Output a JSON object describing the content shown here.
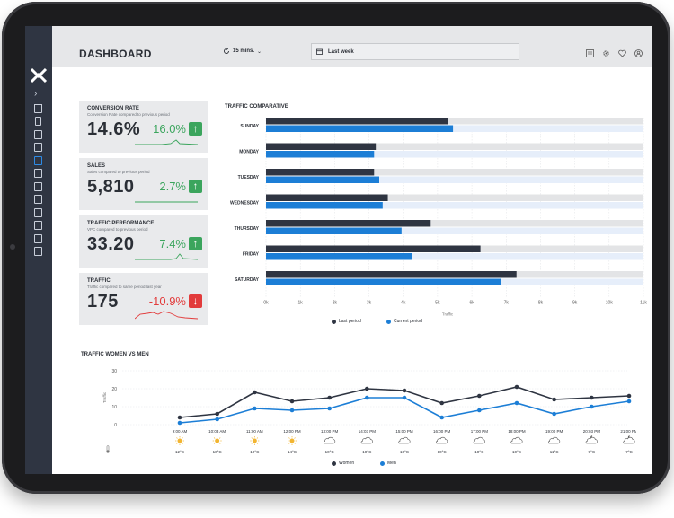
{
  "header": {
    "title": "DASHBOARD",
    "refresh_label": "15 mins.",
    "date_range": "Last week"
  },
  "kpis": [
    {
      "title": "CONVERSION RATE",
      "subtitle": "Conversion Rate compared to previous period",
      "value": "14.6%",
      "change": "16.0%",
      "direction": "up"
    },
    {
      "title": "SALES",
      "subtitle": "Sales compared to previous period",
      "value": "5,810",
      "change": "2.7%",
      "direction": "up"
    },
    {
      "title": "TRAFFIC PERFORMANCE",
      "subtitle": "VPC compared to previous period",
      "value": "33.20",
      "change": "7.4%",
      "direction": "up"
    },
    {
      "title": "TRAFFIC",
      "subtitle": "Traffic compared to same period last year",
      "value": "175",
      "change": "-10.9%",
      "direction": "down"
    }
  ],
  "traffic_comparative": {
    "title": "TRAFFIC COMPARATIVE",
    "xlabel": "Traffic",
    "legend": {
      "last": "Last period",
      "current": "Current period"
    }
  },
  "women_men": {
    "title": "TRAFFIC WOMEN VS MEN",
    "ylabel": "Traffic",
    "legend": {
      "women": "Women",
      "men": "Men"
    }
  },
  "colors": {
    "dark": "#2f3542",
    "blue": "#1c7ed6",
    "green": "#3ba55d",
    "red": "#e23b3b",
    "track": "#e3e4e6",
    "track_blue": "#e6eefa"
  },
  "chart_data": [
    {
      "type": "bar",
      "title": "TRAFFIC COMPARATIVE",
      "xlabel": "Traffic",
      "categories": [
        "SUNDAY",
        "MONDAY",
        "TUESDAY",
        "WEDNESDAY",
        "THURSDAY",
        "FRIDAY",
        "SATURDAY"
      ],
      "series": [
        {
          "name": "Last period",
          "values": [
            5300,
            3200,
            3150,
            3550,
            4800,
            6250,
            7300
          ]
        },
        {
          "name": "Current period",
          "values": [
            5450,
            3150,
            3300,
            3400,
            3950,
            4250,
            6850
          ]
        }
      ],
      "xlim": [
        0,
        11000
      ],
      "xticks": [
        "0k",
        "1k",
        "2k",
        "3k",
        "4k",
        "5k",
        "6k",
        "7k",
        "8k",
        "9k",
        "10k",
        "11k"
      ]
    },
    {
      "type": "line",
      "title": "TRAFFIC WOMEN VS MEN",
      "ylabel": "Traffic",
      "x": [
        "9:00 AM",
        "10:03 AM",
        "11:00 AM",
        "12:00 PM",
        "13:00 PM",
        "14:03 PM",
        "15:00 PM",
        "16:00 PM",
        "17:00 PM",
        "18:00 PM",
        "19:00 PM",
        "20:03 PM",
        "21:00 PM"
      ],
      "series": [
        {
          "name": "Women",
          "values": [
            4,
            6,
            18,
            13,
            15,
            20,
            19,
            12,
            16,
            21,
            14,
            15,
            16
          ]
        },
        {
          "name": "Men",
          "values": [
            1,
            3,
            9,
            8,
            9,
            15,
            15,
            4,
            8,
            12,
            6,
            10,
            13
          ]
        }
      ],
      "ylim": [
        0,
        30
      ],
      "yticks": [
        0,
        10,
        20,
        30
      ],
      "weather": [
        "sunny",
        "sunny",
        "sunny",
        "sunny",
        "cloudy",
        "cloudy",
        "cloudy",
        "cloudy",
        "cloudy",
        "cloudy",
        "cloudy",
        "night-cloudy",
        "night-cloudy"
      ],
      "temperatures": [
        "12°C",
        "10°C",
        "10°C",
        "14°C",
        "10°C",
        "10°C",
        "10°C",
        "10°C",
        "10°C",
        "10°C",
        "11°C",
        "9°C",
        "7°C"
      ]
    }
  ]
}
